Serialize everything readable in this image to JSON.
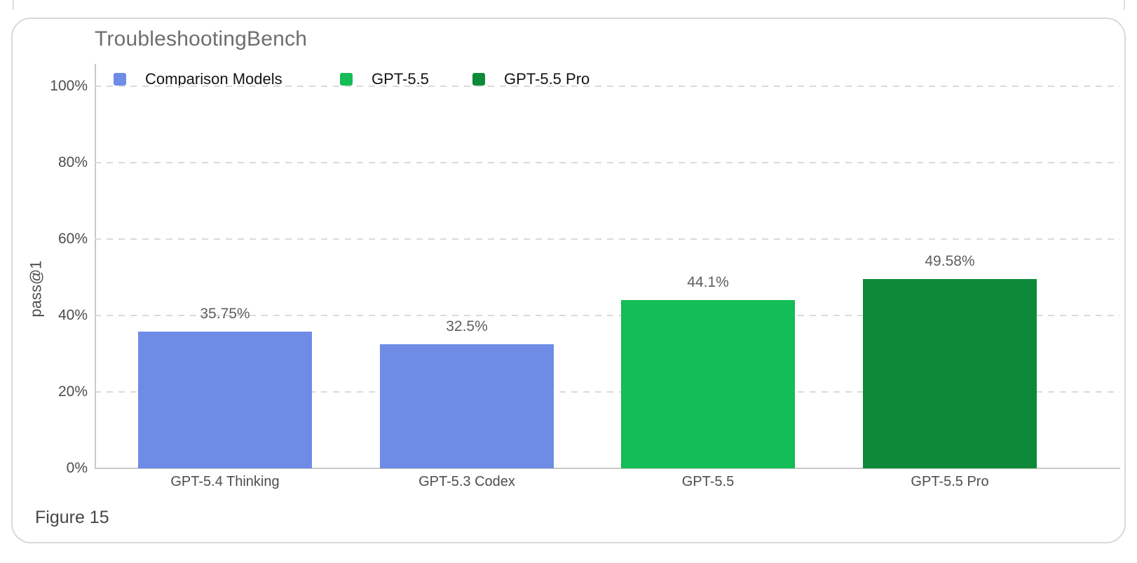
{
  "page": {
    "figure_caption": "Figure 15"
  },
  "colors": {
    "comparison_blue": "#6e8ce6",
    "gpt55_green": "#14bd55",
    "gpt55pro_dark_green": "#0d8a39",
    "gridline": "#dadada",
    "axis_line": "#c9c9c9",
    "title_text": "#6e6e6e",
    "tick_text": "#4d4d4d",
    "value_label_text": "#5e5e5e",
    "card_border": "#d9d9d9",
    "card_background": "#ffffff"
  },
  "chart_data": {
    "type": "bar",
    "title": "TroubleshootingBench",
    "xlabel": "",
    "ylabel": "pass@1",
    "ylim": [
      0,
      100
    ],
    "grid": "horizontal dashed at 20% intervals",
    "legend_position": "top-left, horizontal row",
    "y_ticks": [
      {
        "pct": 0,
        "label": "0%"
      },
      {
        "pct": 20,
        "label": "20%"
      },
      {
        "pct": 40,
        "label": "40%"
      },
      {
        "pct": 60,
        "label": "60%"
      },
      {
        "pct": 80,
        "label": "80%"
      },
      {
        "pct": 100,
        "label": "100%"
      }
    ],
    "legend": [
      {
        "label": "Comparison Models",
        "color": "#6e8ce6"
      },
      {
        "label": "GPT-5.5",
        "color": "#14bd55"
      },
      {
        "label": "GPT-5.5 Pro",
        "color": "#0d8a39"
      }
    ],
    "categories": [
      "GPT-5.4 Thinking",
      "GPT-5.3 Codex",
      "GPT-5.5",
      "GPT-5.5 Pro"
    ],
    "values": [
      35.75,
      32.5,
      44.1,
      49.58
    ],
    "value_labels": [
      "35.75%",
      "32.5%",
      "44.1%",
      "49.58%"
    ],
    "bar_colors": [
      "#6e8ce6",
      "#6e8ce6",
      "#14bd55",
      "#0d8a39"
    ]
  }
}
